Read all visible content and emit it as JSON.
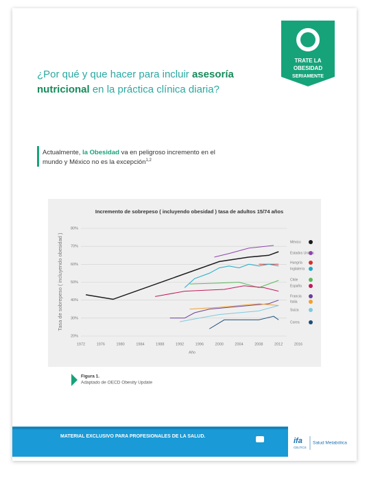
{
  "badge": {
    "lines": [
      "TRATE LA",
      "OBESIDAD",
      "SERIAMENTE"
    ]
  },
  "heading": {
    "lines": [
      [
        "¿Por qué y que hacer para incluir ",
        "asesoría"
      ],
      [
        "nutricional",
        " en la práctica clínica diaria?"
      ]
    ]
  },
  "quote": {
    "lines": [
      [
        "Actualmente, ",
        "la Obesidad",
        " va en peligroso incremento en el"
      ],
      [
        "mundo y México no es la excepción",
        "1,2"
      ]
    ]
  },
  "chart_data": {
    "type": "line",
    "title": "Incremento de sobrepeso ( incluyendo obesidad ) tasa de adultos 15/74 años",
    "y_label": "Tasa de sobrepeso ( incluyendo obesidad )",
    "x_label": "Año",
    "xlim": [
      1972,
      2016
    ],
    "xticks": [
      1972,
      1976,
      1980,
      1984,
      1988,
      1992,
      1996,
      2000,
      2004,
      2008,
      2012,
      2016
    ],
    "ylim": [
      20,
      80
    ],
    "yticks": [
      {
        "value": 20,
        "label": "20%"
      },
      {
        "value": 30,
        "label": "30%"
      },
      {
        "value": 40,
        "label": "40%"
      },
      {
        "value": 50,
        "label": "50%"
      },
      {
        "value": 60,
        "label": "60%"
      },
      {
        "value": 70,
        "label": "70%"
      },
      {
        "value": 80,
        "label": "80%"
      }
    ],
    "grid": true,
    "series": [
      {
        "name": "México",
        "color": "#1a1a1a",
        "x": [
          1973,
          1978.5,
          2000,
          2006,
          2010,
          2012
        ],
        "values": [
          43,
          40.5,
          61.5,
          64,
          65,
          67
        ]
      },
      {
        "name": "Estados Unidos",
        "color": "#8e44ad",
        "x": [
          1999,
          2002,
          2006,
          2011
        ],
        "values": [
          64,
          66,
          69,
          70.5
        ]
      },
      {
        "name": "Hungría",
        "color": "#d9302c",
        "x": [
          2008,
          2012
        ],
        "values": [
          60,
          60
        ]
      },
      {
        "name": "Inglaterra",
        "color": "#1fa8c9",
        "x": [
          1993,
          1995,
          1998,
          2000,
          2002,
          2004,
          2006,
          2008,
          2010,
          2012
        ],
        "values": [
          47,
          52,
          55,
          58,
          59,
          58,
          60,
          59,
          60,
          59
        ]
      },
      {
        "name": "Chile",
        "color": "#5cb85c",
        "x": [
          1994,
          2000,
          2004,
          2008,
          2012
        ],
        "values": [
          49,
          49.5,
          50,
          47,
          51
        ]
      },
      {
        "name": "España",
        "color": "#c2185b",
        "x": [
          1987,
          1993,
          1997,
          2001,
          2005,
          2009,
          2012
        ],
        "values": [
          42,
          45,
          45.5,
          46,
          48,
          47,
          45
        ]
      },
      {
        "name": "Francia",
        "color": "#6a3d9a",
        "x": [
          1990,
          1993,
          1995,
          1998,
          2002,
          2006,
          2010,
          2012
        ],
        "values": [
          30,
          30,
          33,
          35,
          36,
          37,
          38,
          40
        ]
      },
      {
        "name": "Italia",
        "color": "#f0a030",
        "x": [
          1994,
          2000,
          2004,
          2008,
          2012
        ],
        "values": [
          35,
          36,
          37,
          38,
          37
        ]
      },
      {
        "name": "Suiza",
        "color": "#7fc8e0",
        "x": [
          1992,
          1996,
          2000,
          2004,
          2008,
          2012
        ],
        "values": [
          28,
          30,
          32,
          33,
          34,
          37
        ]
      },
      {
        "name": "Corea",
        "color": "#1f4e79",
        "x": [
          1998,
          2001,
          2008,
          2011,
          2012
        ],
        "values": [
          24,
          29,
          29,
          31,
          29
        ]
      }
    ]
  },
  "figure": {
    "label": "Figura 1.",
    "caption": "Adaptado de OECD Obesity Update"
  },
  "footer": {
    "notice": "MATERIAL EXCLUSIVO PARA PROFESIONALES DE LA SALUD.",
    "logo": "ifa",
    "logo_sub": "CELTICS",
    "brand": "Salud Metabólica"
  }
}
